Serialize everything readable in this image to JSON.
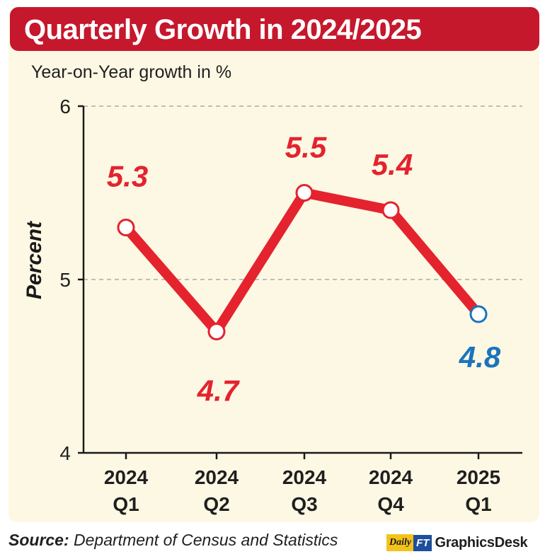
{
  "header": {
    "title": "Quarterly Growth in 2024/2025",
    "subtitle": "Year-on-Year growth in %"
  },
  "chart_data": {
    "type": "line",
    "title": "Quarterly Growth in 2024/2025",
    "subtitle": "Year-on-Year growth in %",
    "ylabel": "Percent",
    "xlabel": "",
    "categories": [
      [
        "2024",
        "Q1"
      ],
      [
        "2024",
        "Q2"
      ],
      [
        "2024",
        "Q3"
      ],
      [
        "2024",
        "Q4"
      ],
      [
        "2025",
        "Q1"
      ]
    ],
    "values": [
      5.3,
      4.7,
      5.5,
      5.4,
      4.8
    ],
    "labels": [
      "5.3",
      "4.7",
      "5.5",
      "5.4",
      "4.8"
    ],
    "ylim": [
      4,
      6
    ],
    "yticks": [
      "4",
      "5",
      "6"
    ],
    "grid": "dashed horizontal at 5 and 6",
    "colors": {
      "line": "#e4232f",
      "label": "#e4232f",
      "highlight": "#1a74bd",
      "marker_fill": "#ffffff"
    },
    "highlight_index": 4
  },
  "footer": {
    "source_label": "Source:",
    "source_text": "Department of Census and Statistics",
    "brand_daily": "Daily",
    "brand_ft": "FT",
    "brand_desk": "GraphicsDesk"
  }
}
